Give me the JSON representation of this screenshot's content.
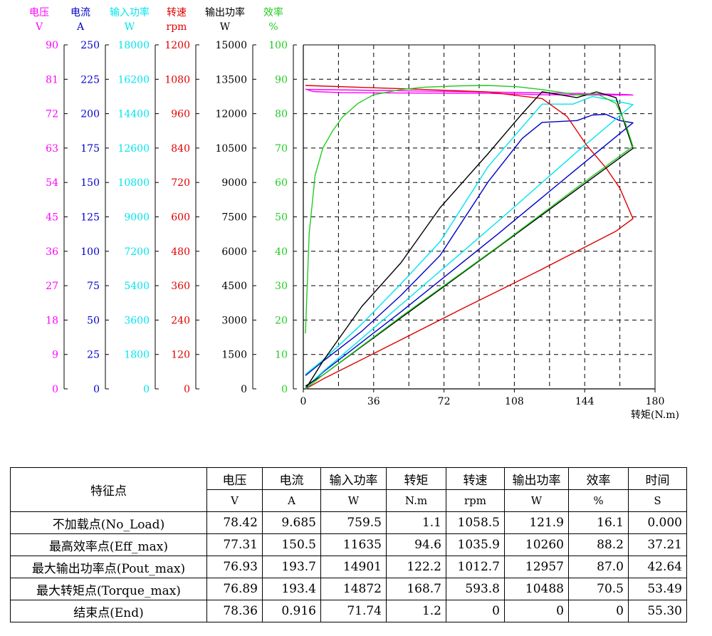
{
  "chart_data": {
    "type": "line",
    "xlabel": "转矩(N.m)",
    "xlim": [
      0,
      180
    ],
    "x_ticks": [
      "0",
      "36",
      "72",
      "108",
      "144",
      "180"
    ],
    "axes": [
      {
        "key": "voltage",
        "label": "电压",
        "unit": "V",
        "color": "#ff00ff",
        "ylim": [
          0,
          90
        ],
        "ticks": [
          "0",
          "9",
          "18",
          "27",
          "36",
          "45",
          "54",
          "63",
          "72",
          "81",
          "90"
        ]
      },
      {
        "key": "current",
        "label": "电流",
        "unit": "A",
        "color": "#0000cc",
        "ylim": [
          0,
          250
        ],
        "ticks": [
          "0",
          "25",
          "50",
          "75",
          "100",
          "125",
          "150",
          "175",
          "200",
          "225",
          "250"
        ]
      },
      {
        "key": "input_power",
        "label": "输入功率",
        "unit": "W",
        "color": "#00e5ee",
        "ylim": [
          0,
          18000
        ],
        "ticks": [
          "0",
          "1800",
          "3600",
          "5400",
          "7200",
          "9000",
          "10800",
          "12600",
          "14400",
          "16200",
          "18000"
        ]
      },
      {
        "key": "speed",
        "label": "转速",
        "unit": "rpm",
        "color": "#e00000",
        "ylim": [
          0,
          1200
        ],
        "ticks": [
          "0",
          "120",
          "240",
          "360",
          "480",
          "600",
          "720",
          "840",
          "960",
          "1080",
          "1200"
        ]
      },
      {
        "key": "output_power",
        "label": "输出功率",
        "unit": "W",
        "color": "#000000",
        "ylim": [
          0,
          15000
        ],
        "ticks": [
          "0",
          "1500",
          "3000",
          "4500",
          "6000",
          "7500",
          "9000",
          "10500",
          "12000",
          "13500",
          "15000"
        ]
      },
      {
        "key": "efficiency",
        "label": "效率",
        "unit": "%",
        "color": "#22cc22",
        "ylim": [
          0,
          100
        ],
        "ticks": [
          "0",
          "10",
          "20",
          "30",
          "40",
          "50",
          "60",
          "70",
          "80",
          "90",
          "100"
        ]
      }
    ],
    "series": [
      {
        "axis": "voltage",
        "color": "#ff00ff",
        "x": [
          1.1,
          5,
          20,
          50,
          94.6,
          122.2,
          150,
          168.7,
          166,
          150,
          100,
          50,
          1.2
        ],
        "y": [
          78.42,
          77.8,
          77.5,
          77.4,
          77.31,
          76.93,
          76.9,
          76.89,
          77.0,
          77.2,
          77.6,
          78.0,
          78.36
        ]
      },
      {
        "axis": "current",
        "color": "#0000cc",
        "x": [
          1.1,
          10,
          30,
          50,
          70,
          94.6,
          112,
          122.2,
          140,
          148,
          155,
          162,
          168.7,
          140,
          100,
          50,
          10,
          1.2
        ],
        "y": [
          9.685,
          20,
          42,
          68,
          97,
          150.5,
          182,
          193.7,
          195,
          199,
          199.5,
          195,
          193.4,
          160,
          113,
          56,
          12,
          0.916
        ]
      },
      {
        "axis": "input_power",
        "color": "#00e5ee",
        "x": [
          1.1,
          10,
          30,
          50,
          70,
          94.6,
          112,
          122.2,
          138,
          148,
          158,
          168.7,
          140,
          100,
          50,
          10,
          1.2
        ],
        "y": [
          759.5,
          1500,
          3400,
          5500,
          7700,
          11635,
          13700,
          14901,
          14900,
          15300,
          15100,
          14872,
          12400,
          8800,
          4400,
          900,
          71.74
        ]
      },
      {
        "axis": "speed",
        "color": "#e00000",
        "x": [
          1.1,
          60,
          94.6,
          122.2,
          135,
          145,
          155,
          162,
          168.7,
          160,
          120,
          80,
          40,
          10,
          1.2
        ],
        "y": [
          1058.5,
          1045,
          1035.9,
          1012.7,
          950,
          850,
          770,
          700,
          593.8,
          550,
          410,
          275,
          137,
          34,
          0
        ]
      },
      {
        "axis": "output_power",
        "color": "#000000",
        "x": [
          1.2,
          10,
          30,
          50,
          70,
          94.6,
          112,
          122.2,
          140,
          150,
          160,
          168.7,
          140,
          100,
          50,
          10,
          1.1
        ],
        "y": [
          0,
          1200,
          3600,
          5500,
          7900,
          10260,
          12000,
          12957,
          12700,
          12950,
          12700,
          10488,
          8700,
          6200,
          3100,
          600,
          121.9
        ]
      },
      {
        "axis": "efficiency",
        "color": "#22cc22",
        "x": [
          1.1,
          3,
          6,
          10,
          15,
          20,
          28,
          36,
          50,
          62,
          80,
          94.6,
          110,
          122.2,
          140,
          150,
          160,
          165,
          168.7,
          140,
          100,
          50,
          10,
          1.2
        ],
        "y": [
          16.1,
          45,
          62,
          70,
          75,
          79,
          83,
          85.5,
          87,
          87.7,
          88.1,
          88.2,
          87.8,
          87.0,
          85.5,
          85.8,
          83,
          77,
          70.5,
          58.5,
          41.5,
          21,
          4,
          0
        ]
      }
    ]
  },
  "table": {
    "corner_label": "特征点",
    "columns": [
      {
        "name": "电压",
        "unit": "V"
      },
      {
        "name": "电流",
        "unit": "A"
      },
      {
        "name": "输入功率",
        "unit": "W"
      },
      {
        "name": "转矩",
        "unit": "N.m"
      },
      {
        "name": "转速",
        "unit": "rpm"
      },
      {
        "name": "输出功率",
        "unit": "W"
      },
      {
        "name": "效率",
        "unit": "%"
      },
      {
        "name": "时间",
        "unit": "S"
      }
    ],
    "rows": [
      {
        "label": "不加载点(No_Load)",
        "values": [
          "78.42",
          "9.685",
          "759.5",
          "1.1",
          "1058.5",
          "121.9",
          "16.1",
          "0.000"
        ]
      },
      {
        "label": "最高效率点(Eff_max)",
        "values": [
          "77.31",
          "150.5",
          "11635",
          "94.6",
          "1035.9",
          "10260",
          "88.2",
          "37.21"
        ]
      },
      {
        "label": "最大输出功率点(Pout_max)",
        "values": [
          "76.93",
          "193.7",
          "14901",
          "122.2",
          "1012.7",
          "12957",
          "87.0",
          "42.64"
        ]
      },
      {
        "label": "最大转矩点(Torque_max)",
        "values": [
          "76.89",
          "193.4",
          "14872",
          "168.7",
          "593.8",
          "10488",
          "70.5",
          "53.49"
        ]
      },
      {
        "label": "结束点(End)",
        "values": [
          "78.36",
          "0.916",
          "71.74",
          "1.2",
          "0",
          "0",
          "0",
          "55.30"
        ]
      }
    ]
  }
}
